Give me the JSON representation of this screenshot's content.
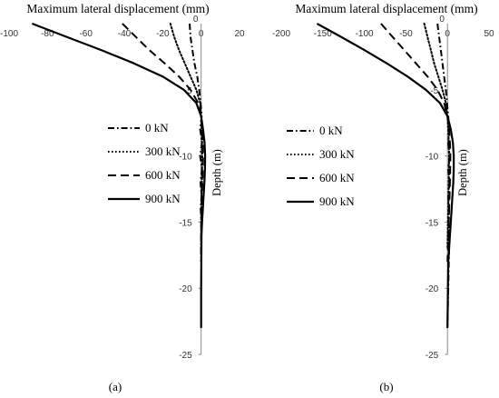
{
  "chart_data": [
    {
      "type": "line",
      "panel_label": "(a)",
      "xlabel": "Maximum lateral displacement (mm)",
      "ylabel": "Depth (m)",
      "xlim": [
        -100,
        20
      ],
      "ylim": [
        -25,
        0
      ],
      "x_ticks": [
        -100,
        -80,
        -60,
        -40,
        -20,
        0,
        20
      ],
      "y_ticks": [
        -5,
        -10,
        -15,
        -20,
        -25
      ],
      "x_axis_position": "top",
      "grid": false,
      "legend_position": "center-left",
      "series": [
        {
          "name": "0 kN",
          "style": "dash-dot",
          "x": [
            -6,
            -5.5,
            -4.5,
            -3.5,
            -2,
            -1,
            -0.2,
            0.3,
            -0.5,
            0.5,
            -0.5,
            0.5,
            -0.3,
            0.2,
            -0.2,
            0.1,
            0,
            0
          ],
          "y": [
            0,
            -1,
            -2,
            -3,
            -4,
            -5,
            -6,
            -7,
            -8,
            -9,
            -10,
            -11,
            -12,
            -13,
            -14,
            -15,
            -17,
            -18
          ]
        },
        {
          "name": "300 kN",
          "style": "dotted",
          "x": [
            -16,
            -14,
            -11.5,
            -8.5,
            -5.5,
            -2.5,
            -0.5,
            0,
            0.3,
            0.5,
            0.6,
            0.5,
            0.4,
            0.2,
            0.1,
            0,
            0
          ],
          "y": [
            0,
            -1,
            -2,
            -3,
            -4,
            -5,
            -6,
            -7,
            -8,
            -9,
            -10,
            -11,
            -12,
            -13,
            -14,
            -15,
            -17
          ]
        },
        {
          "name": "600 kN",
          "style": "dashed",
          "x": [
            -41,
            -34,
            -27,
            -19,
            -11.5,
            -5.5,
            -1.5,
            0,
            0.6,
            0.9,
            1,
            0.9,
            0.7,
            0.4,
            0.2,
            0.1,
            0,
            0
          ],
          "y": [
            0,
            -1,
            -2,
            -3,
            -4,
            -5,
            -6,
            -7,
            -8,
            -9,
            -10,
            -11,
            -12,
            -13,
            -14,
            -15,
            -17,
            -18
          ]
        },
        {
          "name": "900 kN",
          "style": "solid",
          "x": [
            -88,
            -70,
            -52,
            -35,
            -20,
            -9,
            -2.5,
            0,
            1,
            1.8,
            2.1,
            2,
            1.7,
            1.3,
            0.9,
            0.5,
            0.2,
            0.1,
            0,
            0
          ],
          "y": [
            0,
            -1,
            -2,
            -3,
            -4,
            -5,
            -6,
            -7,
            -8,
            -9,
            -10,
            -11,
            -12,
            -13,
            -14,
            -15,
            -16,
            -18,
            -20,
            -23
          ]
        }
      ]
    },
    {
      "type": "line",
      "panel_label": "(b)",
      "xlabel": "Maximum lateral displacement (mm)",
      "ylabel": "Depth (m)",
      "xlim": [
        -200,
        50
      ],
      "ylim": [
        -25,
        0
      ],
      "x_ticks": [
        -200,
        -150,
        -100,
        -50,
        0,
        50
      ],
      "y_ticks": [
        -5,
        -10,
        -15,
        -20,
        -25
      ],
      "x_axis_position": "top",
      "grid": false,
      "legend_position": "center-left",
      "series": [
        {
          "name": "0 kN",
          "style": "dash-dot",
          "x": [
            -12,
            -10,
            -8,
            -6,
            -4,
            -2,
            -0.5,
            1,
            2,
            1,
            2.5,
            1,
            2.5,
            1,
            2,
            1.5,
            2,
            1,
            0
          ],
          "y": [
            0,
            -1,
            -2,
            -3,
            -4,
            -5,
            -6,
            -7,
            -8,
            -9,
            -10,
            -11,
            -12,
            -13,
            -14,
            -15,
            -17,
            -20,
            -23
          ]
        },
        {
          "name": "300 kN",
          "style": "dotted",
          "x": [
            -28,
            -24,
            -20,
            -16,
            -11,
            -6,
            -2,
            0,
            1,
            1.5,
            2,
            1.8,
            1.5,
            1.2,
            1,
            0.5,
            0
          ],
          "y": [
            0,
            -1,
            -2,
            -3,
            -4,
            -5,
            -6,
            -7,
            -8,
            -9,
            -10,
            -11,
            -12,
            -13,
            -14,
            -15,
            -17
          ]
        },
        {
          "name": "600 kN",
          "style": "dashed",
          "x": [
            -80,
            -66,
            -52,
            -38,
            -24,
            -12,
            -4,
            0,
            2,
            3,
            3.5,
            3.3,
            3,
            2.5,
            2,
            1.5,
            1,
            0.5,
            0
          ],
          "y": [
            0,
            -1,
            -2,
            -3,
            -4,
            -5,
            -6,
            -7,
            -8,
            -9,
            -10,
            -11,
            -12,
            -13,
            -14,
            -15,
            -16,
            -17,
            -18
          ]
        },
        {
          "name": "900 kN",
          "style": "solid",
          "x": [
            -157,
            -128,
            -100,
            -73,
            -48,
            -26,
            -9,
            0,
            4,
            6.5,
            7.5,
            7.5,
            7,
            6,
            5,
            4,
            3,
            2,
            1,
            0.5,
            0
          ],
          "y": [
            0,
            -1,
            -2,
            -3,
            -4,
            -5,
            -6,
            -7,
            -8,
            -9,
            -10,
            -11,
            -12,
            -13,
            -14,
            -15,
            -16,
            -17,
            -18,
            -20,
            -23
          ]
        }
      ]
    }
  ]
}
